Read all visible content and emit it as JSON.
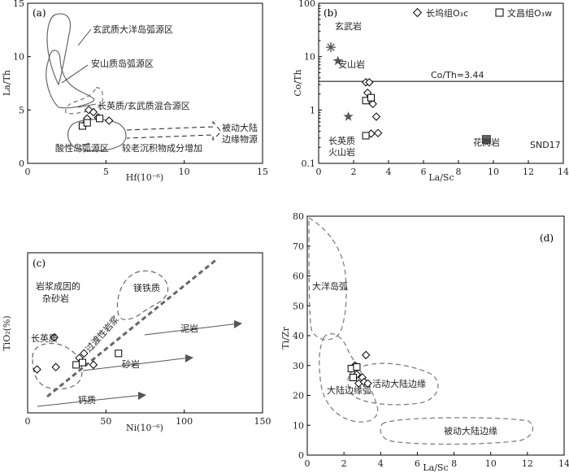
{
  "chart_data": [
    {
      "type": "scatter",
      "panel_label": "(a)",
      "xlabel": "Hf(10⁻⁶)",
      "ylabel": "La/Th",
      "xlim": [
        0,
        15
      ],
      "ylim": [
        0,
        15
      ],
      "xticks": [
        "0",
        "5",
        "10",
        "15"
      ],
      "yticks": [
        "0",
        "5",
        "10",
        "15"
      ],
      "series": [
        {
          "marker": "diamond",
          "points": [
            [
              3.6,
              3.6
            ],
            [
              3.8,
              4.2
            ],
            [
              3.9,
              5.0
            ],
            [
              4.2,
              4.8
            ],
            [
              4.5,
              4.3
            ],
            [
              5.2,
              4.0
            ]
          ]
        },
        {
          "marker": "square",
          "points": [
            [
              3.5,
              3.5
            ],
            [
              3.8,
              3.8
            ],
            [
              4.6,
              4.2
            ]
          ]
        }
      ],
      "annotations": [
        "玄武质大洋岛弧源区",
        "安山质岛弧源区",
        "长英质/玄武质混合源区",
        "被动大陆",
        "边缘物源",
        "较老沉积物成分增加",
        "酸性岛弧源区"
      ]
    },
    {
      "type": "scatter",
      "panel_label": "(b)",
      "xlabel": "La/Sc",
      "ylabel": "Co/Th",
      "yscale": "log",
      "xlim": [
        0,
        14
      ],
      "ylim": [
        0.1,
        100
      ],
      "xticks": [
        "0",
        "2",
        "4",
        "6",
        "8",
        "10",
        "12",
        "14"
      ],
      "yticks": [
        "0.1",
        "1",
        "10",
        "100"
      ],
      "legend": [
        {
          "marker": "diamond",
          "label": "长坞组O₃c"
        },
        {
          "marker": "square",
          "label": "文昌组O₃w"
        }
      ],
      "reference_line": {
        "y": 3.44,
        "label": "Co/Th=3.44"
      },
      "series": [
        {
          "marker": "diamond",
          "points": [
            [
              2.7,
              3.3
            ],
            [
              2.9,
              3.3
            ],
            [
              2.8,
              2.1
            ],
            [
              3.1,
              1.3
            ],
            [
              3.3,
              0.75
            ],
            [
              3.4,
              0.37
            ],
            [
              3.0,
              0.36
            ]
          ]
        },
        {
          "marker": "square",
          "points": [
            [
              2.7,
              1.5
            ],
            [
              3.0,
              1.7
            ],
            [
              2.7,
              0.33
            ]
          ]
        }
      ],
      "reference_points": [
        {
          "marker": "asterisk",
          "x": 0.7,
          "y": 15,
          "label": "玄武岩"
        },
        {
          "marker": "star",
          "x": 1.1,
          "y": 8.3,
          "label": "安山岩"
        },
        {
          "marker": "star",
          "x": 1.7,
          "y": 0.75,
          "label": "长英质"
        },
        {
          "marker": "filled-square",
          "x": 9.6,
          "y": 0.28,
          "label": "花岗岩"
        }
      ],
      "annotations": [
        "火山岩",
        "SND17"
      ]
    },
    {
      "type": "scatter",
      "panel_label": "(c)",
      "xlabel": "Ni(10⁻⁶)",
      "ylabel": "TiO₂(%)",
      "xlim": [
        0,
        150
      ],
      "xticks": [
        "0",
        "50",
        "100",
        "150"
      ],
      "series": [
        {
          "marker": "diamond",
          "points": [
            [
              6,
              0.58
            ],
            [
              17,
              0.86
            ],
            [
              18,
              0.6
            ],
            [
              33,
              0.68
            ],
            [
              36,
              0.72
            ],
            [
              42,
              0.62
            ]
          ]
        },
        {
          "marker": "square",
          "points": [
            [
              31,
              0.62
            ],
            [
              35,
              0.64
            ],
            [
              58,
              0.72
            ]
          ]
        }
      ],
      "annotations": [
        "岩浆成因的",
        "杂砂岩",
        "镁铁质",
        "过渡性岩浆",
        "泥岩",
        "长英质",
        "砂岩",
        "钙质"
      ]
    },
    {
      "type": "scatter",
      "panel_label": "(d)",
      "xlabel": "La/Sc",
      "ylabel": "Ti/Zr",
      "xlim": [
        0,
        14
      ],
      "ylim": [
        0,
        80
      ],
      "xticks": [
        "0",
        "2",
        "4",
        "6",
        "8",
        "10",
        "12",
        "14"
      ],
      "yticks": [
        "0",
        "10",
        "20",
        "30",
        "40",
        "50",
        "60",
        "70",
        "80"
      ],
      "series": [
        {
          "marker": "diamond",
          "points": [
            [
              2.6,
              30
            ],
            [
              2.7,
              27
            ],
            [
              2.8,
              24
            ],
            [
              3.0,
              26
            ],
            [
              3.1,
              24.5
            ],
            [
              3.2,
              33.5
            ],
            [
              3.3,
              24
            ]
          ]
        },
        {
          "marker": "square",
          "points": [
            [
              2.4,
              29
            ],
            [
              2.7,
              29.5
            ],
            [
              2.5,
              26
            ]
          ]
        }
      ],
      "annotations": [
        "大洋岛弧",
        "大陆边缘弧",
        "活动大陆边缘",
        "被动大陆边缘"
      ]
    }
  ]
}
